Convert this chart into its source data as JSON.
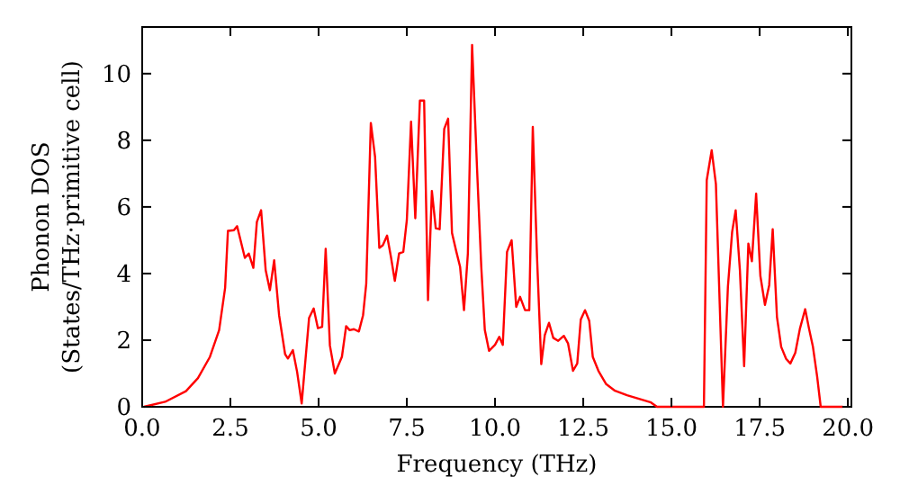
{
  "chart_data": {
    "type": "line",
    "xlabel": "Frequency (THz)",
    "ylabel": "Phonon DOS\n(States/THz·primitive cell)",
    "xlim": [
      0,
      20.1
    ],
    "ylim": [
      0,
      11.4
    ],
    "xticks": [
      {
        "value": 0,
        "label": "0.0"
      },
      {
        "value": 2.5,
        "label": "2.5"
      },
      {
        "value": 5,
        "label": "5.0"
      },
      {
        "value": 7.5,
        "label": "7.5"
      },
      {
        "value": 10,
        "label": "10.0"
      },
      {
        "value": 12.5,
        "label": "12.5"
      },
      {
        "value": 15,
        "label": "15.0"
      },
      {
        "value": 17.5,
        "label": "17.5"
      },
      {
        "value": 20,
        "label": "20.0"
      }
    ],
    "yticks": [
      0,
      2,
      4,
      6,
      8,
      10
    ],
    "grid": false,
    "marker": "none",
    "line_style": "solid",
    "series": [
      {
        "color": "#ff0000",
        "x": [
          0.05,
          0.65,
          1.24,
          1.58,
          1.92,
          2.18,
          2.35,
          2.43,
          2.6,
          2.69,
          2.91,
          3.02,
          3.15,
          3.25,
          3.37,
          3.5,
          3.62,
          3.74,
          3.88,
          4.05,
          4.13,
          4.27,
          4.39,
          4.52,
          4.73,
          4.86,
          4.98,
          5.1,
          5.2,
          5.32,
          5.46,
          5.66,
          5.78,
          5.88,
          6.0,
          6.14,
          6.26,
          6.35,
          6.48,
          6.6,
          6.72,
          6.82,
          6.94,
          7.05,
          7.16,
          7.28,
          7.4,
          7.5,
          7.62,
          7.74,
          7.87,
          7.99,
          8.1,
          8.21,
          8.32,
          8.43,
          8.56,
          8.67,
          8.78,
          8.9,
          9.01,
          9.12,
          9.23,
          9.35,
          9.49,
          9.61,
          9.71,
          9.83,
          10.0,
          10.12,
          10.22,
          10.34,
          10.47,
          10.6,
          10.71,
          10.85,
          10.97,
          11.07,
          11.19,
          11.31,
          11.41,
          11.53,
          11.65,
          11.79,
          11.95,
          12.07,
          12.21,
          12.33,
          12.43,
          12.55,
          12.67,
          12.77,
          12.93,
          13.15,
          13.4,
          13.74,
          14.08,
          14.42,
          14.59,
          15.92,
          16.0,
          16.14,
          16.26,
          16.46,
          16.6,
          16.72,
          16.82,
          16.94,
          17.06,
          17.18,
          17.28,
          17.4,
          17.52,
          17.65,
          17.77,
          17.87,
          17.99,
          18.11,
          18.25,
          18.37,
          18.51,
          18.64,
          18.79,
          18.9,
          19.01,
          19.13,
          19.23,
          19.86
        ],
        "values": [
          0,
          0.15,
          0.47,
          0.86,
          1.5,
          2.3,
          3.57,
          5.28,
          5.3,
          5.42,
          4.47,
          4.6,
          4.17,
          5.55,
          5.9,
          4.1,
          3.5,
          4.4,
          2.75,
          1.58,
          1.45,
          1.7,
          1.05,
          0.1,
          2.67,
          2.95,
          2.36,
          2.4,
          4.74,
          1.84,
          1.0,
          1.5,
          2.42,
          2.3,
          2.33,
          2.26,
          2.75,
          3.7,
          8.52,
          7.5,
          4.77,
          4.85,
          5.14,
          4.5,
          3.78,
          4.6,
          4.65,
          5.6,
          8.56,
          5.66,
          9.19,
          9.19,
          3.2,
          6.48,
          5.36,
          5.33,
          8.34,
          8.65,
          5.22,
          4.67,
          4.2,
          2.9,
          4.6,
          10.86,
          7.15,
          4.2,
          2.31,
          1.68,
          1.86,
          2.1,
          1.86,
          4.65,
          5.0,
          3.0,
          3.3,
          2.9,
          2.9,
          8.4,
          4.5,
          1.28,
          2.15,
          2.52,
          2.07,
          1.98,
          2.13,
          1.9,
          1.08,
          1.3,
          2.62,
          2.9,
          2.58,
          1.5,
          1.08,
          0.68,
          0.48,
          0.35,
          0.24,
          0.13,
          0,
          0,
          6.8,
          7.7,
          6.68,
          0,
          3.6,
          5.25,
          5.9,
          4.1,
          1.22,
          4.9,
          4.37,
          6.4,
          3.93,
          3.06,
          3.65,
          5.33,
          2.7,
          1.8,
          1.44,
          1.3,
          1.62,
          2.34,
          2.93,
          2.34,
          1.8,
          0.9,
          0,
          0
        ]
      }
    ]
  }
}
